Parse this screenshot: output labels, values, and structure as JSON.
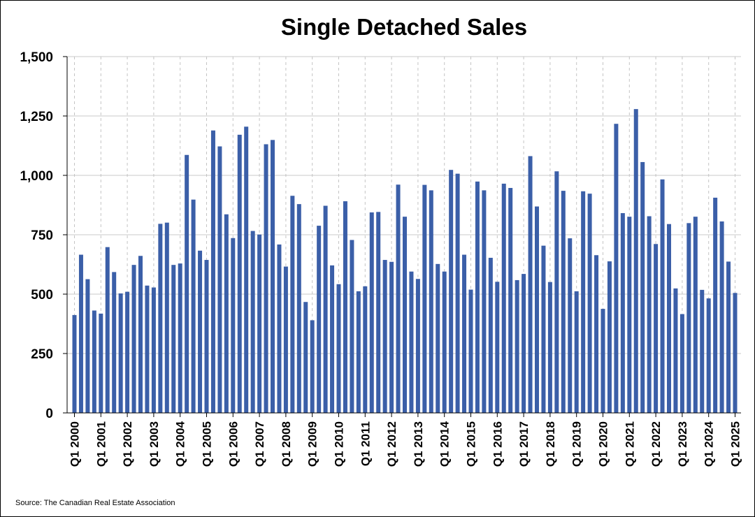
{
  "chart_data": {
    "type": "bar",
    "title": "Single Detached Sales",
    "xlabel": "",
    "ylabel": "",
    "ylim": [
      0,
      1500
    ],
    "yticks": [
      0,
      250,
      500,
      750,
      1000,
      1250,
      1500
    ],
    "ytick_labels": [
      "0",
      "250",
      "500",
      "750",
      "1,000",
      "1,250",
      "1,500"
    ],
    "grid": {
      "horizontal": true,
      "vertical_dashed": true
    },
    "bar_color": "#3b5fa8",
    "categories": [
      "Q1 2000",
      "Q2 2000",
      "Q3 2000",
      "Q4 2000",
      "Q1 2001",
      "Q2 2001",
      "Q3 2001",
      "Q4 2001",
      "Q1 2002",
      "Q2 2002",
      "Q3 2002",
      "Q4 2002",
      "Q1 2003",
      "Q2 2003",
      "Q3 2003",
      "Q4 2003",
      "Q1 2004",
      "Q2 2004",
      "Q3 2004",
      "Q4 2004",
      "Q1 2005",
      "Q2 2005",
      "Q3 2005",
      "Q4 2005",
      "Q1 2006",
      "Q2 2006",
      "Q3 2006",
      "Q4 2006",
      "Q1 2007",
      "Q2 2007",
      "Q3 2007",
      "Q4 2007",
      "Q1 2008",
      "Q2 2008",
      "Q3 2008",
      "Q4 2008",
      "Q1 2009",
      "Q2 2009",
      "Q3 2009",
      "Q4 2009",
      "Q1 2010",
      "Q2 2010",
      "Q3 2010",
      "Q4 2010",
      "Q1 2011",
      "Q2 2011",
      "Q3 2011",
      "Q4 2011",
      "Q1 2012",
      "Q2 2012",
      "Q3 2012",
      "Q4 2012",
      "Q1 2013",
      "Q2 2013",
      "Q3 2013",
      "Q4 2013",
      "Q1 2014",
      "Q2 2014",
      "Q3 2014",
      "Q4 2014",
      "Q1 2015",
      "Q2 2015",
      "Q3 2015",
      "Q4 2015",
      "Q1 2016",
      "Q2 2016",
      "Q3 2016",
      "Q4 2016",
      "Q1 2017",
      "Q2 2017",
      "Q3 2017",
      "Q4 2017",
      "Q1 2018",
      "Q2 2018",
      "Q3 2018",
      "Q4 2018",
      "Q1 2019",
      "Q2 2019",
      "Q3 2019",
      "Q4 2019",
      "Q1 2020",
      "Q2 2020",
      "Q3 2020",
      "Q4 2020",
      "Q1 2021",
      "Q2 2021",
      "Q3 2021",
      "Q4 2021",
      "Q1 2022",
      "Q2 2022",
      "Q3 2022",
      "Q4 2022",
      "Q1 2023",
      "Q2 2023",
      "Q3 2023",
      "Q4 2023",
      "Q1 2024",
      "Q2 2024",
      "Q3 2024",
      "Q4 2024",
      "Q1 2025"
    ],
    "values": [
      412,
      666,
      563,
      431,
      418,
      698,
      593,
      503,
      510,
      623,
      661,
      536,
      528,
      796,
      801,
      623,
      629,
      1086,
      898,
      683,
      644,
      1189,
      1122,
      836,
      736,
      1171,
      1205,
      766,
      751,
      1131,
      1149,
      709,
      616,
      914,
      879,
      467,
      390,
      788,
      872,
      621,
      542,
      891,
      728,
      512,
      533,
      844,
      846,
      644,
      636,
      961,
      826,
      595,
      564,
      960,
      937,
      627,
      595,
      1023,
      1007,
      666,
      519,
      974,
      937,
      653,
      552,
      965,
      947,
      559,
      585,
      1081,
      869,
      704,
      551,
      1017,
      935,
      735,
      512,
      933,
      923,
      664,
      438,
      638,
      1217,
      841,
      826,
      1279,
      1056,
      828,
      711,
      983,
      795,
      524,
      416,
      799,
      826,
      518,
      482,
      906,
      806,
      637,
      505
    ],
    "xtick_labels": [
      "Q1 2000",
      "Q1 2001",
      "Q1 2002",
      "Q1 2003",
      "Q1 2004",
      "Q1 2005",
      "Q1 2006",
      "Q1 2007",
      "Q1 2008",
      "Q1 2009",
      "Q1 2010",
      "Q1 2011",
      "Q1 2012",
      "Q1 2013",
      "Q1 2014",
      "Q1 2015",
      "Q1 2016",
      "Q1 2017",
      "Q1 2018",
      "Q1 2019",
      "Q1 2020",
      "Q1 2021",
      "Q1 2022",
      "Q1 2023",
      "Q1 2024",
      "Q1 2025"
    ]
  },
  "source": "Source: The Canadian Real Estate Association"
}
